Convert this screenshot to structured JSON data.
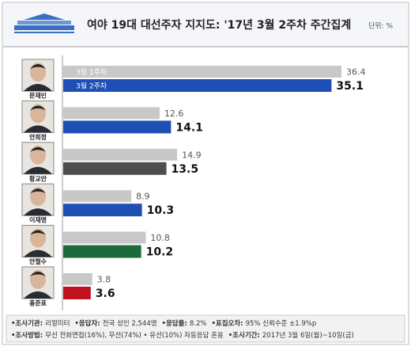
{
  "chart_data": {
    "type": "bar",
    "title": "여야 19대 대선주자 지지도: '17년 3월 2주차 주간집계",
    "unit_label": "단위: %",
    "categories": [
      "문재인",
      "안희정",
      "황교안",
      "이재명",
      "안철수",
      "홍준표"
    ],
    "series": [
      {
        "name": "3월 1주차",
        "color": "#c8c8c8",
        "values": [
          36.4,
          12.6,
          14.9,
          8.9,
          10.8,
          3.8
        ]
      },
      {
        "name": "3월 2주차",
        "colors": [
          "#1f4fb5",
          "#1f4fb5",
          "#4d4d4d",
          "#1f4fb5",
          "#1d6b3d",
          "#c0121e"
        ],
        "values": [
          35.1,
          14.1,
          13.5,
          10.3,
          10.2,
          3.6
        ]
      }
    ],
    "footer": [
      [
        {
          "label": "•조사기관:",
          "text": "리얼미터"
        },
        {
          "label": "•응답자:",
          "text": "전국 성인 2,544명"
        },
        {
          "label": "•응답률:",
          "text": "8.2%"
        },
        {
          "label": "•표집오차:",
          "text": "95% 신뢰수준 ±1.9%p"
        }
      ],
      [
        {
          "label": "•조사방법:",
          "text": "무선 전화면접(16%), 무선(74%) • 유선(10%) 자동응답 혼용"
        },
        {
          "label": "•조사기간:",
          "text": "2017년 3월 6일(월)~10일(금)"
        }
      ]
    ]
  }
}
